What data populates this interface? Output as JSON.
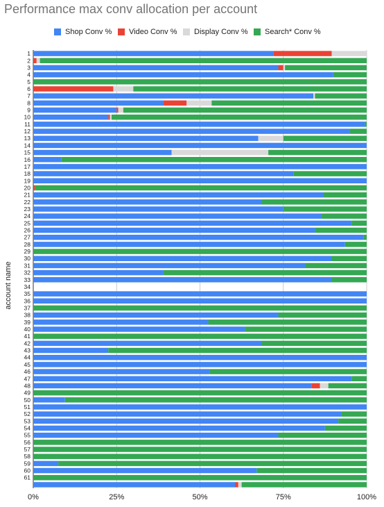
{
  "chart_data": {
    "type": "bar",
    "orientation": "horizontal",
    "stacked": true,
    "title": "Performance max conv allocation per account",
    "ylabel": "account name",
    "xlabel": "",
    "xlim": [
      0,
      100
    ],
    "x_ticks": [
      "0%",
      "25%",
      "50%",
      "75%",
      "100%"
    ],
    "grid": true,
    "legend_position": "top",
    "categories": [
      "1",
      "2",
      "3",
      "4",
      "5",
      "6",
      "7",
      "8",
      "9",
      "10",
      "11",
      "12",
      "13",
      "14",
      "15",
      "16",
      "17",
      "18",
      "19",
      "20",
      "21",
      "22",
      "23",
      "24",
      "25",
      "26",
      "27",
      "28",
      "29",
      "30",
      "31",
      "32",
      "33",
      "34",
      "35",
      "36",
      "37",
      "38",
      "39",
      "40",
      "41",
      "42",
      "43",
      "44",
      "45",
      "46",
      "47",
      "48",
      "49",
      "50",
      "51",
      "52",
      "53",
      "54",
      "55",
      "56",
      "57",
      "58",
      "59",
      "60",
      "61",
      ""
    ],
    "series": [
      {
        "name": "Shop Conv %",
        "color": "#4285f4",
        "values": [
          72,
          0,
          73.5,
          90,
          0,
          0,
          84,
          39,
          25,
          22.5,
          99.5,
          95,
          67.5,
          100,
          41.5,
          8.5,
          100,
          78,
          100,
          0,
          87,
          68.5,
          75,
          86.5,
          95.5,
          84.5,
          99,
          93.5,
          0,
          89.5,
          81.5,
          39,
          89.5,
          0,
          100,
          100,
          0,
          73.5,
          52.5,
          63.5,
          0,
          68.5,
          22.5,
          100,
          100,
          53,
          95.5,
          83.5,
          0,
          9.5,
          100,
          92.5,
          91.5,
          87.5,
          73.5,
          0,
          0,
          0,
          7.5,
          67,
          0,
          60.5
        ]
      },
      {
        "name": "Video Conv %",
        "color": "#ea4335",
        "values": [
          17.5,
          1,
          1.5,
          0,
          0,
          24,
          0,
          7,
          0.5,
          0.5,
          0,
          0,
          0,
          0,
          0,
          0,
          0,
          0,
          0,
          0.5,
          0,
          0,
          0,
          0,
          0,
          0,
          0,
          0,
          0,
          0,
          0,
          0,
          0,
          0,
          0,
          0,
          0,
          0,
          0,
          0,
          0,
          0,
          0,
          0,
          0,
          0,
          0,
          2.5,
          0,
          0,
          0,
          0,
          0,
          0,
          0,
          0,
          0,
          0,
          0,
          0,
          0,
          1
        ]
      },
      {
        "name": "Display Conv %",
        "color": "#d9d9d9",
        "values": [
          10.5,
          1,
          0.5,
          0,
          0,
          6,
          0.5,
          7.5,
          1.5,
          0.5,
          0,
          0,
          7.5,
          0,
          29,
          0,
          0,
          0,
          0,
          0,
          0,
          0,
          0,
          0,
          0,
          0,
          0,
          0,
          0,
          0,
          0,
          0,
          0,
          0,
          0,
          0,
          0,
          0,
          0,
          0,
          0,
          0,
          0,
          0,
          0,
          0,
          0,
          2.5,
          0,
          0,
          0,
          0,
          0,
          0,
          0,
          0,
          0,
          0,
          0,
          0,
          0,
          1
        ]
      },
      {
        "name": "Search* Conv %",
        "color": "#34a853",
        "values": [
          0,
          98,
          24.5,
          10,
          100,
          70,
          15.5,
          46.5,
          73,
          76.5,
          0.5,
          5,
          25,
          0,
          29.5,
          91.5,
          0,
          22,
          0,
          99.5,
          13,
          31.5,
          25,
          13.5,
          4.5,
          15.5,
          1,
          6.5,
          100,
          10.5,
          18.5,
          61,
          10.5,
          0,
          0,
          0,
          100,
          26.5,
          47.5,
          36.5,
          100,
          31.5,
          77.5,
          0,
          0,
          47,
          4.5,
          11.5,
          100,
          90.5,
          0,
          7.5,
          8.5,
          12.5,
          26.5,
          100,
          100,
          100,
          92.5,
          33,
          100,
          37.5
        ]
      }
    ]
  }
}
